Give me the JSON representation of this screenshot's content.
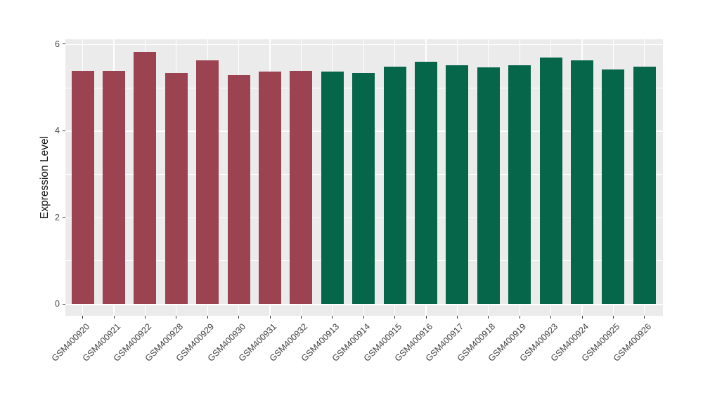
{
  "chart_data": {
    "type": "bar",
    "title": "",
    "xlabel": "",
    "ylabel": "Expression Level",
    "ylim": [
      0,
      6
    ],
    "yticks": [
      0,
      2,
      4,
      6
    ],
    "ytick_labels": [
      "0",
      "2",
      "4",
      "6"
    ],
    "minor_gridlines": [
      1,
      3,
      5
    ],
    "grid": "on",
    "legend_position": "none",
    "panel_background": "#EBEBEB",
    "grid_color": "#FFFFFF",
    "categories": [
      "GSM400920",
      "GSM400921",
      "GSM400922",
      "GSM400928",
      "GSM400929",
      "GSM400930",
      "GSM400931",
      "GSM400932",
      "GSM400913",
      "GSM400914",
      "GSM400915",
      "GSM400916",
      "GSM400917",
      "GSM400918",
      "GSM400919",
      "GSM400923",
      "GSM400924",
      "GSM400925",
      "GSM400926"
    ],
    "values": [
      5.38,
      5.38,
      5.82,
      5.33,
      5.62,
      5.28,
      5.36,
      5.39,
      5.36,
      5.33,
      5.48,
      5.6,
      5.51,
      5.46,
      5.51,
      5.69,
      5.63,
      5.42,
      5.48
    ],
    "groups": [
      "red",
      "red",
      "red",
      "red",
      "red",
      "red",
      "red",
      "red",
      "green",
      "green",
      "green",
      "green",
      "green",
      "green",
      "green",
      "green",
      "green",
      "green",
      "green"
    ],
    "group_colors": {
      "red": "#9C4351",
      "green": "#06664A"
    }
  }
}
